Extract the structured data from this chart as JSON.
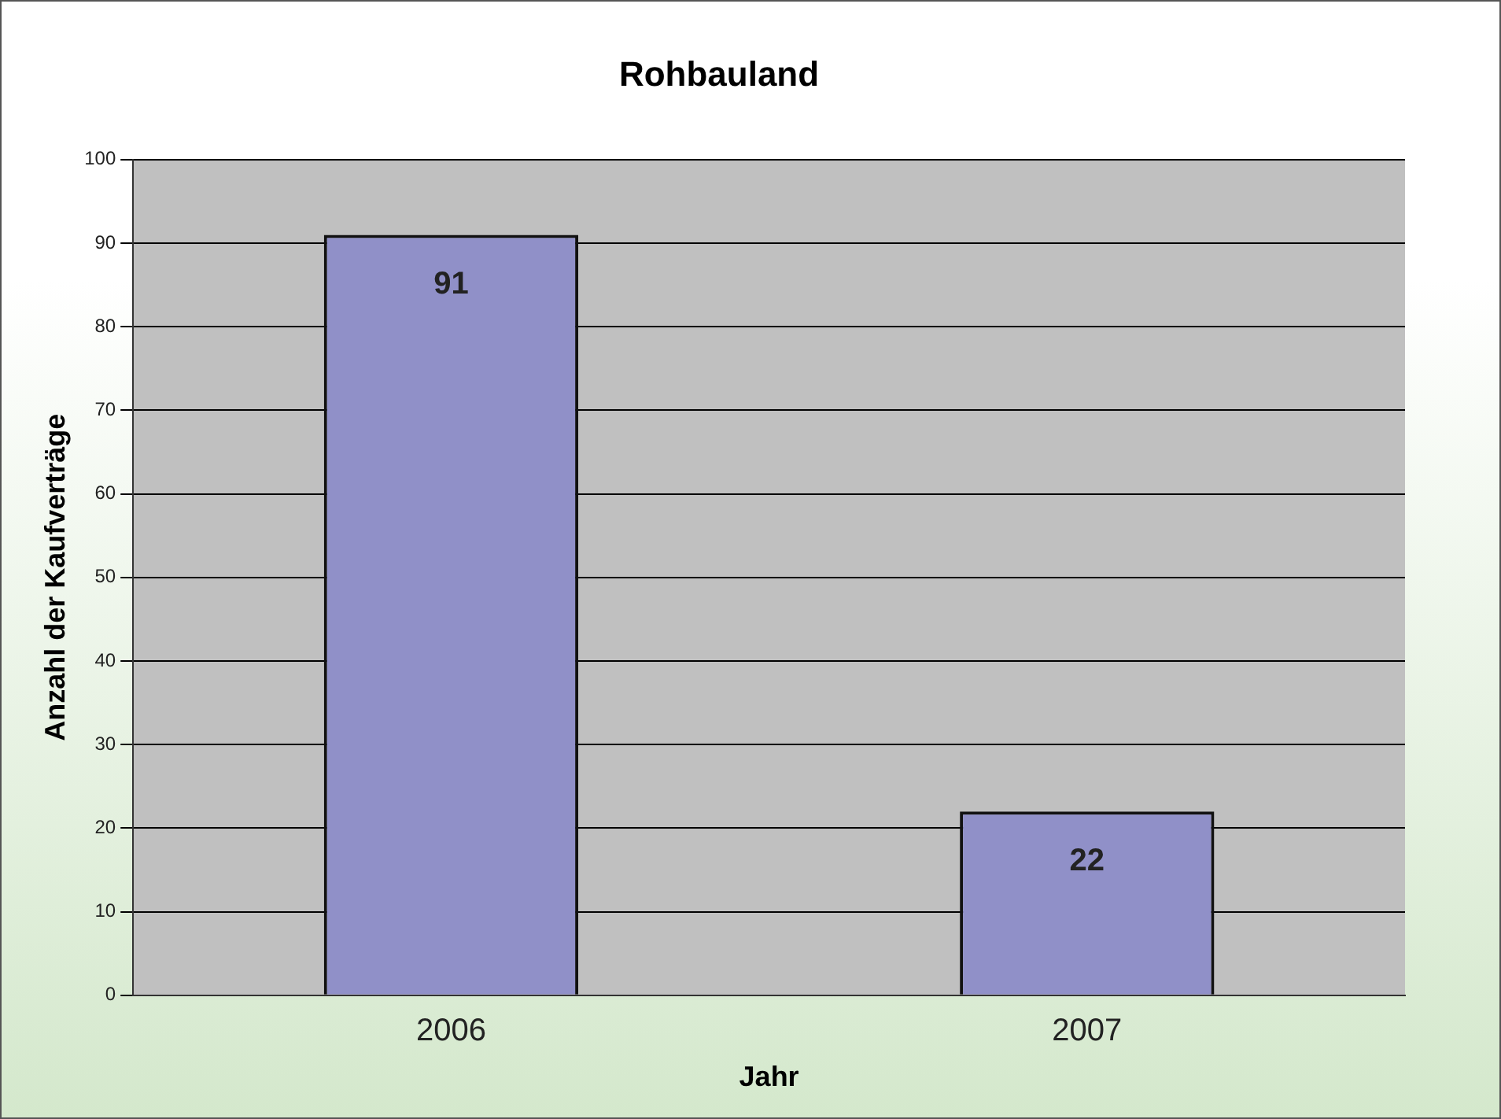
{
  "chart_data": {
    "type": "bar",
    "title": "Rohbauland",
    "xlabel": "Jahr",
    "ylabel": "Anzahl der Kaufverträge",
    "categories": [
      "2006",
      "2007"
    ],
    "values": [
      91,
      22
    ],
    "color": "#9090c8",
    "ylim": [
      0,
      100
    ],
    "yticks": [
      0,
      10,
      20,
      30,
      40,
      50,
      60,
      70,
      80,
      90,
      100
    ],
    "grid": "y",
    "data_labels": true
  }
}
